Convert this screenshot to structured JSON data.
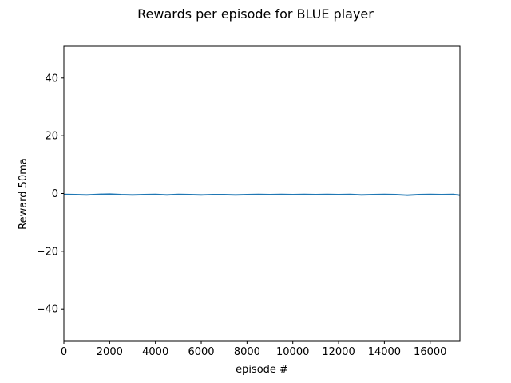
{
  "chart_data": {
    "type": "line",
    "title": "Rewards per episode for BLUE player",
    "xlabel": "episode #",
    "ylabel": "Reward 50ma",
    "xlim": [
      0,
      17300
    ],
    "ylim": [
      -51,
      51
    ],
    "xticks": [
      0,
      2000,
      4000,
      6000,
      8000,
      10000,
      12000,
      14000,
      16000
    ],
    "yticks": [
      -40,
      -20,
      0,
      20,
      40
    ],
    "xtick_labels": [
      "0",
      "2000",
      "4000",
      "6000",
      "8000",
      "10000",
      "12000",
      "14000",
      "16000"
    ],
    "ytick_labels": [
      "−40",
      "−20",
      "0",
      "20",
      "40"
    ],
    "grid": false,
    "series": [
      {
        "color": "#1f77b4",
        "x": [
          0,
          500,
          1000,
          1500,
          2000,
          2500,
          3000,
          3500,
          4000,
          4500,
          5000,
          5500,
          6000,
          6500,
          7000,
          7500,
          8000,
          8500,
          9000,
          9500,
          10000,
          10500,
          11000,
          11500,
          12000,
          12500,
          13000,
          13500,
          14000,
          14500,
          15000,
          15500,
          16000,
          16500,
          17000,
          17300
        ],
        "values": [
          -0.3,
          -0.4,
          -0.5,
          -0.3,
          -0.2,
          -0.4,
          -0.5,
          -0.4,
          -0.3,
          -0.5,
          -0.3,
          -0.4,
          -0.5,
          -0.4,
          -0.4,
          -0.5,
          -0.4,
          -0.3,
          -0.4,
          -0.3,
          -0.4,
          -0.3,
          -0.4,
          -0.3,
          -0.4,
          -0.3,
          -0.5,
          -0.4,
          -0.3,
          -0.4,
          -0.6,
          -0.4,
          -0.3,
          -0.4,
          -0.3,
          -0.6
        ]
      }
    ]
  }
}
